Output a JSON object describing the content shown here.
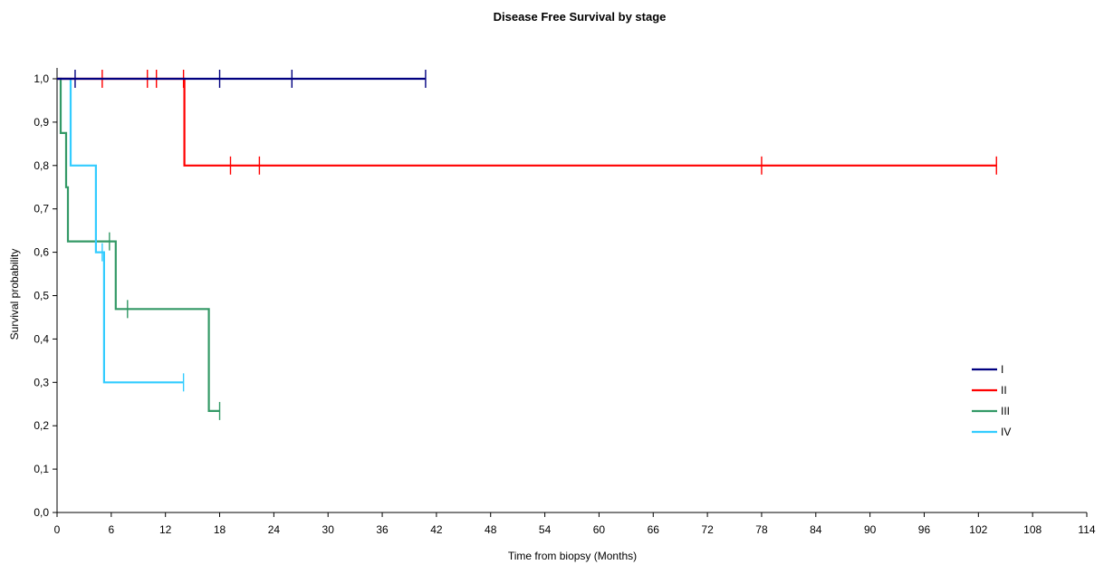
{
  "chart_data": {
    "type": "line",
    "title": "Disease Free Survival by stage",
    "xlabel": "Time from biopsy (Months)",
    "ylabel": "Survival probability",
    "xlim": [
      0,
      114
    ],
    "ylim": [
      0,
      1
    ],
    "xticks": [
      "0",
      "6",
      "12",
      "18",
      "24",
      "30",
      "36",
      "42",
      "48",
      "54",
      "60",
      "66",
      "72",
      "78",
      "84",
      "90",
      "96",
      "102",
      "108",
      "114"
    ],
    "yticks": [
      "0,0",
      "0,1",
      "0,2",
      "0,3",
      "0,4",
      "0,5",
      "0,6",
      "0,7",
      "0,8",
      "0,9",
      "1,0"
    ],
    "grid": false,
    "legend_position": "right",
    "series": [
      {
        "name": "I",
        "color": "#000080",
        "points": [
          [
            0,
            1.0
          ],
          [
            40.8,
            1.0
          ]
        ],
        "censored": [
          [
            2.0,
            1.0
          ],
          [
            18.0,
            1.0
          ],
          [
            26.0,
            1.0
          ],
          [
            40.8,
            1.0
          ]
        ]
      },
      {
        "name": "II",
        "color": "#ff0000",
        "points": [
          [
            0,
            1.0
          ],
          [
            14.1,
            1.0
          ],
          [
            14.1,
            0.8
          ],
          [
            104.0,
            0.8
          ]
        ],
        "censored": [
          [
            5.0,
            1.0
          ],
          [
            10.0,
            1.0
          ],
          [
            11.0,
            1.0
          ],
          [
            14.0,
            1.0
          ],
          [
            19.2,
            0.8
          ],
          [
            22.4,
            0.8
          ],
          [
            78.0,
            0.8
          ],
          [
            104.0,
            0.8
          ]
        ]
      },
      {
        "name": "III",
        "color": "#339966",
        "points": [
          [
            0,
            1.0
          ],
          [
            0.4,
            1.0
          ],
          [
            0.4,
            0.875
          ],
          [
            1.0,
            0.875
          ],
          [
            1.0,
            0.75
          ],
          [
            1.2,
            0.75
          ],
          [
            1.2,
            0.625
          ],
          [
            6.5,
            0.625
          ],
          [
            6.5,
            0.469
          ],
          [
            16.8,
            0.469
          ],
          [
            16.8,
            0.234
          ],
          [
            18.0,
            0.234
          ]
        ],
        "censored": [
          [
            5.8,
            0.625
          ],
          [
            7.8,
            0.469
          ],
          [
            18.0,
            0.234
          ]
        ]
      },
      {
        "name": "IV",
        "color": "#33ccff",
        "points": [
          [
            0,
            1.0
          ],
          [
            1.5,
            1.0
          ],
          [
            1.5,
            0.8
          ],
          [
            4.3,
            0.8
          ],
          [
            4.3,
            0.6
          ],
          [
            5.2,
            0.6
          ],
          [
            5.2,
            0.3
          ],
          [
            14.0,
            0.3
          ]
        ],
        "censored": [
          [
            5.0,
            0.6
          ],
          [
            14.0,
            0.3
          ]
        ]
      }
    ]
  }
}
